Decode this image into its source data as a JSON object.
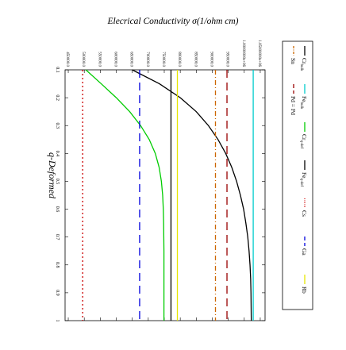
{
  "chart_data": {
    "type": "line",
    "title": "Elecrical Conductivity σ(1/ohm cm)",
    "xlabel": "q-Deformed",
    "ylabel": "",
    "x_ticks": [
      "0.1",
      "0.2",
      "0.3",
      "0.4",
      "0.5",
      "0.6",
      "0.7",
      "0.8",
      "0.9",
      "1"
    ],
    "xlim": [
      0.1,
      1.0
    ],
    "y_ticks": [
      "1.05000000e+06",
      "1.00000000e+06",
      "950000.0",
      "900000.0",
      "850000.0",
      "800000.0",
      "750000.0",
      "700000.0",
      "650000.0",
      "600000.0",
      "550000.0",
      "500000.0",
      "450000.0"
    ],
    "ylim": [
      440000,
      1065000
    ],
    "series": [
      {
        "name": "Cr",
        "sub": "bulk",
        "color": "#000000",
        "dash": "",
        "x": [
          0.1,
          0.15,
          0.2,
          0.25,
          0.3,
          0.35,
          0.4,
          0.45,
          0.5,
          0.55,
          0.6,
          0.65,
          0.7,
          0.75,
          0.8,
          0.85,
          0.9,
          0.95,
          1.0
        ],
        "y": [
          650000,
          735000,
          800000,
          850000,
          888000,
          918000,
          942000,
          961000,
          976000,
          988000,
          998000,
          1005000,
          1011000,
          1015000,
          1018000,
          1020000,
          1021000,
          1021500,
          1022000
        ]
      },
      {
        "name": "Fe",
        "sub": "bulk",
        "color": "#00cccc",
        "dash": "",
        "x": [
          0.1,
          1.0
        ],
        "y": [
          1028000,
          1028000
        ]
      },
      {
        "name": "Cr",
        "sub": "q-def",
        "color": "#00cc00",
        "dash": "",
        "x": [
          0.1,
          0.15,
          0.2,
          0.25,
          0.3,
          0.35,
          0.4,
          0.45,
          0.5,
          0.55,
          0.6,
          0.65,
          0.7,
          0.75,
          0.8,
          0.85,
          0.9,
          0.95,
          1.0
        ],
        "y": [
          505000,
          553000,
          600000,
          642000,
          676000,
          703000,
          722000,
          734000,
          741000,
          745000,
          747000,
          748000,
          748500,
          749000,
          749000,
          749000,
          749000,
          749000,
          749000
        ]
      },
      {
        "name": "Fe",
        "sub": "q-def",
        "color": "#000000",
        "dash": "",
        "x": [
          0.1,
          1.0
        ],
        "y": [
          771000,
          771000
        ]
      },
      {
        "name": "Cs",
        "sub": "",
        "color": "#cc0000",
        "dash": "2,3",
        "x": [
          0.1,
          1.0
        ],
        "y": [
          495000,
          495000
        ]
      },
      {
        "name": "Ga",
        "sub": "",
        "color": "#0000dd",
        "dash": "10,6",
        "x": [
          0.1,
          1.0
        ],
        "y": [
          673000,
          673000
        ]
      },
      {
        "name": "Rb",
        "sub": "",
        "color": "#e6e600",
        "dash": "",
        "x": [
          0.1,
          1.0
        ],
        "y": [
          791000,
          791000
        ]
      },
      {
        "name": "Sn",
        "sub": "",
        "color": "#cc6600",
        "dash": "6,3,1,3",
        "x": [
          0.1,
          1.0
        ],
        "y": [
          910000,
          910000
        ]
      },
      {
        "name": "Pd = Pd",
        "sub": "",
        "color": "#990000",
        "dash": "10,6",
        "x": [
          0.1,
          1.0
        ],
        "y": [
          946000,
          946000
        ]
      }
    ],
    "legend_position": "top-right",
    "grid": false
  }
}
